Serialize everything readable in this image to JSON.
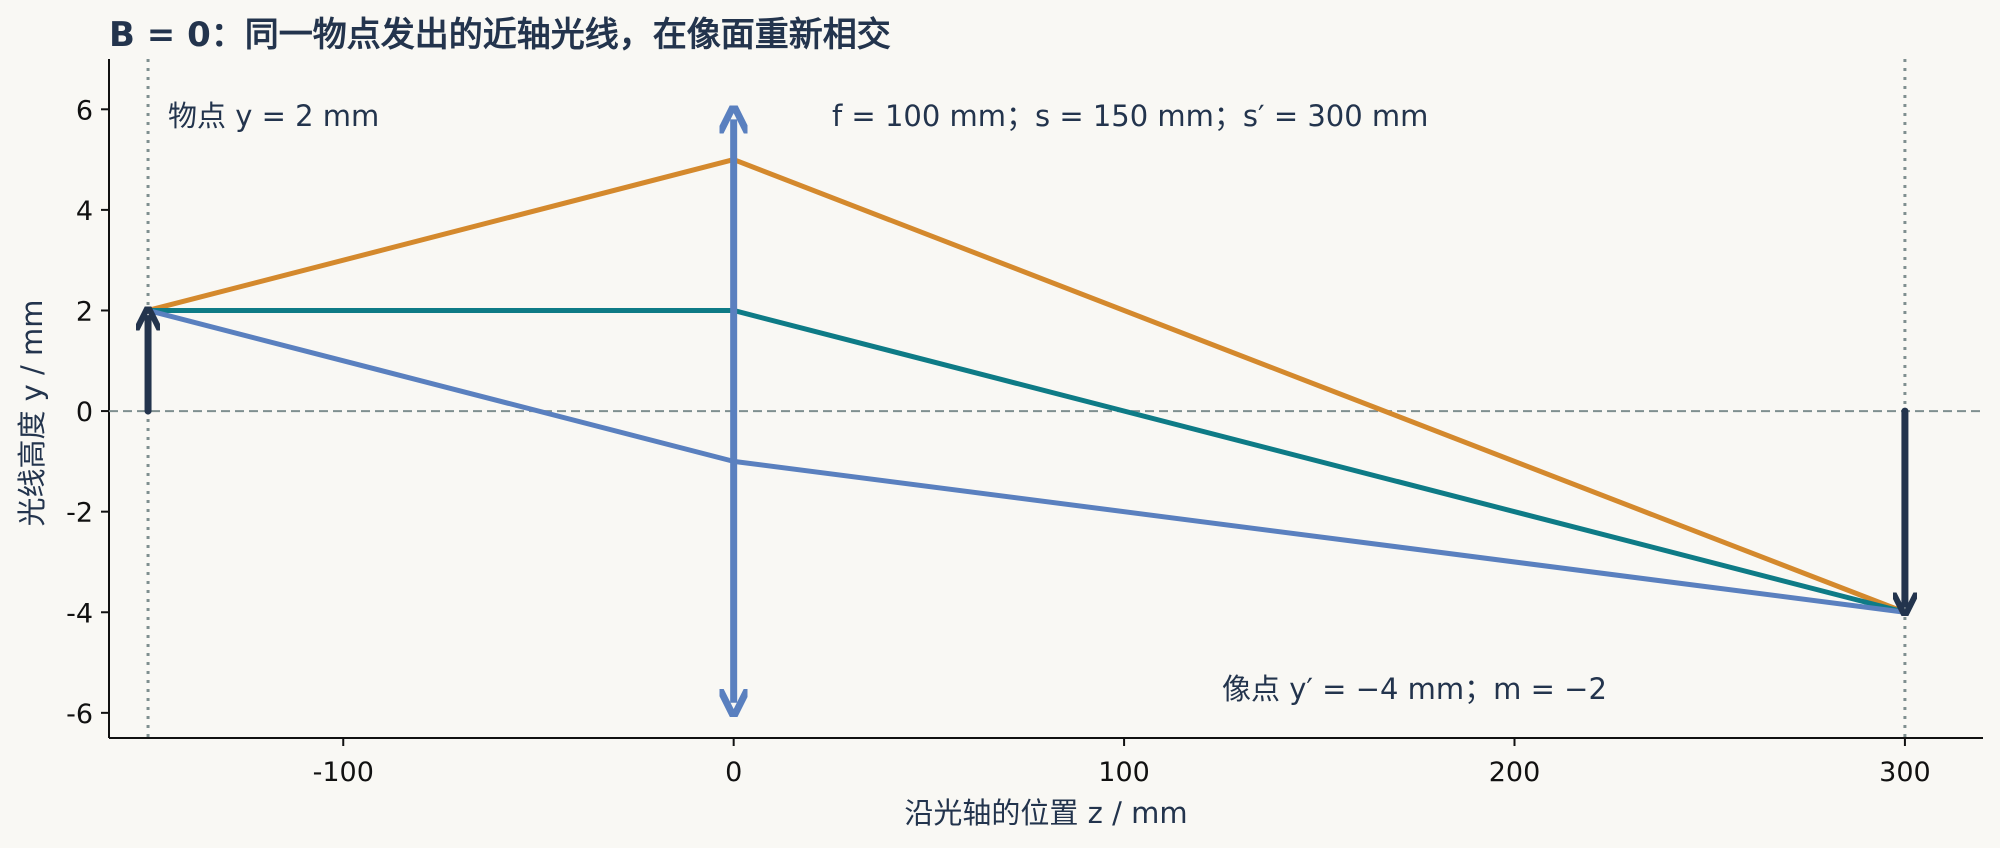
{
  "chart_data": {
    "type": "line",
    "title": "B = 0：同一物点发出的近轴光线，在像面重新相交",
    "xlabel": "沿光轴的位置 z / mm",
    "ylabel": "光线高度 y / mm",
    "xlim": [
      -160,
      320
    ],
    "ylim": [
      -6.5,
      7
    ],
    "xticks": [
      -100,
      0,
      100,
      200,
      300
    ],
    "yticks": [
      6,
      4,
      2,
      0,
      -2,
      -4,
      -6
    ],
    "xtick_labels": [
      "-100",
      "0",
      "100",
      "200",
      "300"
    ],
    "ytick_labels": [
      "6",
      "4",
      "2",
      "0",
      "-2",
      "-4",
      "-6"
    ],
    "grid": false,
    "series": [
      {
        "color": "#d4892d",
        "x": [
          -150,
          0,
          300
        ],
        "y": [
          2,
          5,
          -4
        ]
      },
      {
        "color": "#0e7b86",
        "x": [
          -150,
          0,
          300
        ],
        "y": [
          2,
          2,
          -4
        ]
      },
      {
        "color": "#5a80bf",
        "x": [
          -150,
          0,
          300
        ],
        "y": [
          2,
          -1,
          -4
        ]
      }
    ],
    "lens": {
      "z": 0,
      "y_range": [
        -5.8,
        5.8
      ],
      "color": "#5a80bf"
    },
    "object": {
      "z": -150,
      "y": 2,
      "color": "#23344d"
    },
    "image": {
      "z": 300,
      "y": -4,
      "color": "#23344d"
    },
    "optical_axis_color": "#7f8f8f",
    "annotations": {
      "object": "物点 y = 2 mm",
      "params": "f = 100 mm；s = 150 mm；s′ = 300 mm",
      "image": "像点 y′ = −4 mm；m = −2"
    }
  }
}
